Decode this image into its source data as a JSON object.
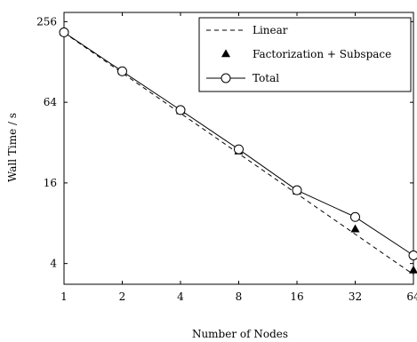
{
  "chart_data": {
    "type": "line",
    "title": "",
    "xlabel": "Number of Nodes",
    "ylabel": "Wall Time / s",
    "x_scale": "log2",
    "y_scale": "log2",
    "xlim": [
      1,
      64
    ],
    "ylim": [
      2.8,
      300
    ],
    "x_ticks": [
      1,
      2,
      4,
      8,
      16,
      32,
      64
    ],
    "x_tick_labels": [
      "1",
      "2",
      "4",
      "8",
      "16",
      "32",
      "64"
    ],
    "y_ticks": [
      4,
      16,
      64,
      256
    ],
    "y_tick_labels": [
      "4",
      "16",
      "64",
      "256"
    ],
    "grid": false,
    "legend_position": "top-right",
    "series": [
      {
        "name": "Linear",
        "style": "dashed",
        "marker": "none",
        "color": "#000000",
        "x": [
          1,
          2,
          4,
          8,
          16,
          32,
          64
        ],
        "y": [
          212,
          106,
          53,
          26.5,
          13.25,
          6.625,
          3.3125
        ]
      },
      {
        "name": "Factorization + Subspace",
        "style": "none",
        "marker": "filled-triangle",
        "color": "#000000",
        "x": [
          1,
          2,
          4,
          8,
          16,
          32,
          64
        ],
        "y": [
          212,
          108,
          55,
          27.5,
          13.8,
          7.2,
          3.55
        ]
      },
      {
        "name": "Total",
        "style": "solid",
        "marker": "open-circle",
        "color": "#000000",
        "x": [
          1,
          2,
          4,
          8,
          16,
          32,
          64
        ],
        "y": [
          213,
          109,
          56,
          28.5,
          14.1,
          8.9,
          4.6
        ]
      }
    ]
  }
}
